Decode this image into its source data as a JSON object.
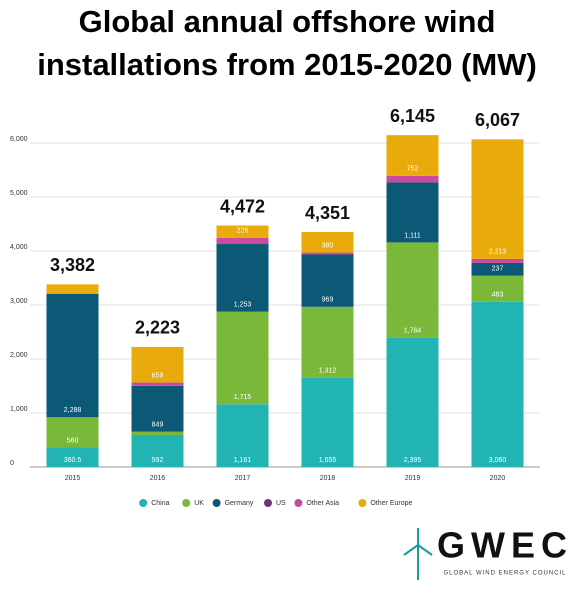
{
  "chart_data": {
    "type": "stacked-bar",
    "title": [
      "Global annual offshore wind",
      "installations from 2015-2020 (MW)"
    ],
    "categories": [
      "2015",
      "2016",
      "2017",
      "2018",
      "2019",
      "2020"
    ],
    "series": [
      {
        "name": "China",
        "color": "#22b3b3",
        "values": [
          360.5,
          592,
          1161,
          1655,
          2395,
          3060
        ],
        "value_labels": [
          "360.5",
          "592",
          "1,161",
          "1,655",
          "2,395",
          "3,060"
        ]
      },
      {
        "name": "UK",
        "color": "#7ab83a",
        "values": [
          560,
          62,
          1715,
          1312,
          1764,
          483
        ],
        "value_labels": [
          "560",
          null,
          "1,715",
          "1,312",
          "1,764",
          "483"
        ]
      },
      {
        "name": "Germany",
        "color": "#0b5877",
        "values": [
          2288,
          849,
          1253,
          969,
          1111,
          237
        ],
        "value_labels": [
          "2,288",
          "849",
          "1,253",
          "969",
          "1,111",
          "237"
        ]
      },
      {
        "name": "US",
        "color": "#6b3575",
        "values": [
          0,
          0,
          0,
          0,
          0,
          0
        ]
      },
      {
        "name": "Other Asia",
        "color": "#c94a9e",
        "values": [
          0,
          61,
          117,
          35,
          123,
          74
        ]
      },
      {
        "name": "Other Europe",
        "color": "#e8ab0b",
        "values": [
          173.5,
          659,
          226,
          380,
          752,
          2213
        ],
        "value_labels": [
          null,
          "659",
          "226",
          "380",
          "752",
          "2,213"
        ]
      }
    ],
    "totals": [
      3382,
      2223,
      4472,
      4351,
      6145,
      6067
    ],
    "total_labels": [
      "3,382",
      "2,223",
      "4,472",
      "4,351",
      "6,145",
      "6,067"
    ],
    "ylim": [
      0,
      6000
    ],
    "yticks": [
      0,
      {
        "value": 1000,
        "label": "1,000"
      },
      {
        "value": 2000,
        "label": "2,000"
      },
      {
        "value": 3000,
        "label": "3,000"
      },
      {
        "value": 4000,
        "label": "4,000"
      },
      {
        "value": 5000,
        "label": "5,000"
      },
      {
        "value": 6000,
        "label": "6,000"
      }
    ],
    "grid": true,
    "legend": "bottom",
    "logo": {
      "name": "GWEC",
      "tagline": "GLOBAL WIND ENERGY COUNCIL"
    }
  }
}
